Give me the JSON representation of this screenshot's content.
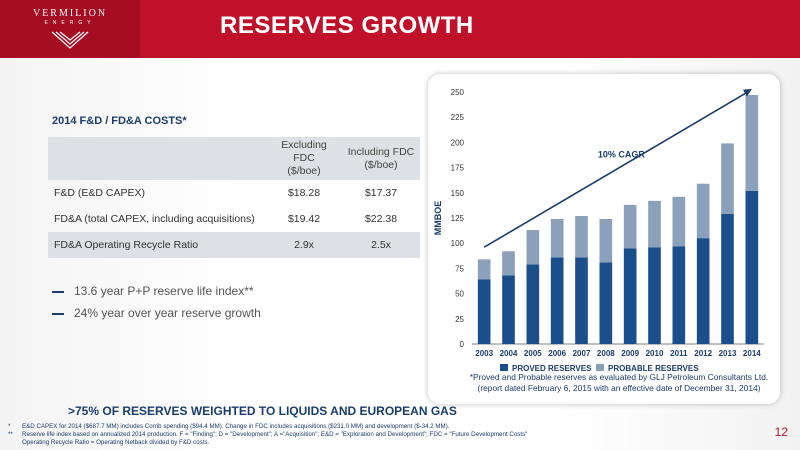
{
  "header": {
    "logo_name": "VERMILION",
    "logo_sub": "ENERGY",
    "title": "RESERVES GROWTH"
  },
  "costs": {
    "heading": "2014 F&D / FD&A COSTS*",
    "columns": [
      "Excluding FDC ($/boe)",
      "Including FDC ($/boe)"
    ],
    "col1_line1": "Excluding FDC",
    "col1_line2": "($/boe)",
    "col2_line1": "Including FDC",
    "col2_line2": "($/boe)",
    "rows": [
      {
        "label": "F&D (E&D CAPEX)",
        "excl": "$18.28",
        "incl": "$17.37"
      },
      {
        "label": "FD&A (total CAPEX, including acquisitions)",
        "excl": "$19.42",
        "incl": "$22.38"
      },
      {
        "label": "FD&A Operating Recycle Ratio",
        "excl": "2.9x",
        "incl": "2.5x"
      }
    ]
  },
  "bullets": [
    "13.6 year P+P reserve life index**",
    "24% year over year reserve growth"
  ],
  "chart_data": {
    "type": "bar",
    "stacked": true,
    "categories": [
      "2003",
      "2004",
      "2005",
      "2006",
      "2007",
      "2008",
      "2009",
      "2010",
      "2011",
      "2012",
      "2013",
      "2014"
    ],
    "series": [
      {
        "name": "PROVED RESERVES",
        "color": "#1a4f8c",
        "values": [
          64,
          68,
          79,
          86,
          86,
          81,
          95,
          96,
          97,
          105,
          129,
          152
        ]
      },
      {
        "name": "PROBABLE RESERVES",
        "color": "#8aa0bb",
        "values": [
          20,
          24,
          34,
          38,
          41,
          43,
          43,
          46,
          49,
          54,
          70,
          95
        ]
      }
    ],
    "totals": [
      84,
      92,
      113,
      124,
      127,
      124,
      138,
      142,
      146,
      159,
      199,
      247
    ],
    "ylabel": "MMBOE",
    "ylim": [
      0,
      250
    ],
    "yticks": [
      "0",
      "25",
      "50",
      "75",
      "100",
      "125",
      "150",
      "175",
      "200",
      "225",
      "250"
    ],
    "annotation": "10% CAGR",
    "trend": {
      "start": {
        "x": "2003",
        "y": 96
      },
      "end": {
        "x": "2014",
        "y": 253
      }
    },
    "legend_position": "bottom",
    "grid": false
  },
  "chart_note": "*Proved and Probable reserves as evaluated by GLJ Petroleum Consultants Ltd. (report dated February 6, 2015 with an effective date of December 31, 2014)",
  "callout": ">75% OF RESERVES WEIGHTED TO LIQUIDS AND EUROPEAN GAS",
  "footnotes": [
    {
      "mark": "*",
      "text": "E&D CAPEX for 2014 ($687.7 MM) includes Corrib spending ($94.4 MM). Change in FDC includes acquisitions ($231.0 MM) and development ($-34.2 MM)."
    },
    {
      "mark": "**",
      "text": "Reserve life index based on annualized 2014 production. F = \"Finding\"; D = \"Development\"; A =\"Acquisition\"; E&D = \"Exploration and Development\"; FDC = \"Future Development Costs\""
    },
    {
      "mark": "",
      "text": "Operating Recycle Ratio = Operating Netback divided by F&D costs."
    }
  ],
  "page_number": "12",
  "colors": {
    "brand_red": "#c0102a",
    "navy": "#1a3d6d",
    "proved": "#1a4f8c",
    "probable": "#8aa0bb"
  }
}
